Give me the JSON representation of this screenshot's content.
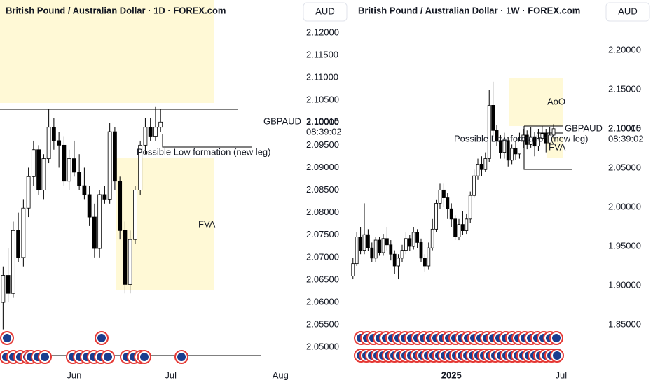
{
  "chart_data": [
    {
      "type": "candlestick",
      "title": "British Pound / Australian Dollar · 1D · FOREX.com",
      "y_axis_label": "AUD",
      "symbol": "GBPAUD",
      "last_price": 2.10015,
      "countdown": "08:39:02",
      "annotations": [
        "Possible Low formation (new leg)",
        "FVA"
      ],
      "up_color": "#ffffff",
      "down_color": "#000000",
      "open": [
        2.06,
        2.066,
        2.062,
        2.076,
        2.07,
        2.081,
        2.088,
        2.094,
        2.085,
        2.092,
        2.099,
        2.096,
        2.095,
        2.087,
        2.092,
        2.089,
        2.086,
        2.084,
        2.079,
        2.072,
        2.084,
        2.083,
        2.098,
        2.087,
        2.076,
        2.064,
        2.074,
        2.085,
        2.095,
        2.099,
        2.097,
        2.099
      ],
      "high": [
        2.068,
        2.072,
        2.078,
        2.08,
        2.083,
        2.09,
        2.096,
        2.095,
        2.093,
        2.103,
        2.101,
        2.098,
        2.097,
        2.094,
        2.096,
        2.093,
        2.09,
        2.086,
        2.082,
        2.085,
        2.086,
        2.1,
        2.099,
        2.088,
        2.078,
        2.076,
        2.086,
        2.096,
        2.101,
        2.101,
        2.1035,
        2.103
      ],
      "low": [
        2.054,
        2.06,
        2.061,
        2.069,
        2.068,
        2.079,
        2.086,
        2.084,
        2.083,
        2.091,
        2.094,
        2.09,
        2.086,
        2.085,
        2.088,
        2.085,
        2.083,
        2.077,
        2.07,
        2.07,
        2.082,
        2.082,
        2.085,
        2.074,
        2.062,
        2.062,
        2.073,
        2.084,
        2.093,
        2.096,
        2.096,
        2.098
      ],
      "close": [
        2.066,
        2.062,
        2.076,
        2.07,
        2.081,
        2.088,
        2.094,
        2.085,
        2.092,
        2.099,
        2.096,
        2.095,
        2.087,
        2.092,
        2.089,
        2.086,
        2.084,
        2.079,
        2.072,
        2.084,
        2.083,
        2.098,
        2.087,
        2.076,
        2.064,
        2.074,
        2.085,
        2.095,
        2.099,
        2.097,
        2.099,
        2.10015
      ],
      "xlim": [
        -0.6,
        58
      ],
      "xticks": [
        {
          "value": 14,
          "label": "Jun"
        },
        {
          "value": 33,
          "label": "Jul"
        },
        {
          "value": 54.6,
          "label": "Aug"
        }
      ],
      "ylim": [
        2.0463,
        2.1273
      ],
      "yticks": [
        {
          "value": 2.12,
          "label": "2.12000"
        },
        {
          "value": 2.115,
          "label": "2.11500"
        },
        {
          "value": 2.11,
          "label": "2.11000"
        },
        {
          "value": 2.105,
          "label": "2.10500"
        },
        {
          "value": 2.1,
          "label": "2.10000"
        },
        {
          "value": 2.095,
          "label": "2.09500"
        },
        {
          "value": 2.09,
          "label": "2.09000"
        },
        {
          "value": 2.085,
          "label": "2.08500"
        },
        {
          "value": 2.08,
          "label": "2.08000"
        },
        {
          "value": 2.075,
          "label": "2.07500"
        },
        {
          "value": 2.07,
          "label": "2.07000"
        },
        {
          "value": 2.065,
          "label": "2.06500"
        },
        {
          "value": 2.06,
          "label": "2.06000"
        },
        {
          "value": 2.055,
          "label": "2.05500"
        },
        {
          "value": 2.05,
          "label": "2.05000"
        }
      ]
    },
    {
      "type": "candlestick",
      "title": "British Pound / Australian Dollar · 1W · FOREX.com",
      "y_axis_label": "AUD",
      "symbol": "GBPAUD",
      "last_price": 2.10015,
      "countdown": "08:39:02",
      "annotations": [
        "AoO",
        "Possible Low formation (new leg)",
        "FVA"
      ],
      "up_color": "#ffffff",
      "down_color": "#000000",
      "open": [
        1.912,
        1.928,
        1.962,
        1.945,
        1.965,
        1.948,
        1.935,
        1.958,
        1.942,
        1.96,
        1.952,
        1.94,
        1.925,
        1.935,
        1.945,
        1.96,
        1.95,
        1.968,
        1.955,
        1.935,
        1.925,
        1.948,
        1.972,
        2.005,
        2.022,
        2.012,
        1.998,
        1.985,
        1.962,
        1.978,
        1.97,
        1.985,
        2.015,
        2.04,
        2.055,
        2.048,
        2.062,
        2.13,
        2.098,
        2.085,
        2.07,
        2.085,
        2.06,
        2.075,
        2.068,
        2.085,
        2.092,
        2.08,
        2.09,
        2.078,
        2.088,
        2.094,
        2.082,
        2.092
      ],
      "high": [
        1.935,
        1.968,
        1.975,
        2.005,
        1.972,
        1.955,
        1.962,
        1.962,
        1.966,
        1.975,
        1.958,
        1.945,
        1.94,
        1.952,
        1.968,
        1.965,
        1.975,
        1.972,
        1.96,
        1.94,
        1.955,
        1.985,
        2.01,
        2.03,
        2.03,
        2.018,
        2.005,
        1.99,
        1.985,
        1.995,
        1.992,
        2.02,
        2.048,
        2.062,
        2.065,
        2.07,
        2.15,
        2.16,
        2.105,
        2.092,
        2.095,
        2.09,
        2.08,
        2.085,
        2.095,
        2.1,
        2.098,
        2.102,
        2.096,
        2.1,
        2.104,
        2.1,
        2.102,
        2.106
      ],
      "low": [
        1.908,
        1.925,
        1.94,
        1.94,
        1.944,
        1.93,
        1.93,
        1.938,
        1.938,
        1.945,
        1.932,
        1.915,
        1.908,
        1.93,
        1.94,
        1.944,
        1.946,
        1.948,
        1.93,
        1.918,
        1.92,
        1.945,
        1.968,
        1.998,
        2.0,
        1.985,
        1.975,
        1.958,
        1.958,
        1.965,
        1.966,
        1.98,
        2.012,
        2.035,
        2.04,
        2.045,
        2.058,
        2.09,
        2.078,
        2.062,
        2.062,
        2.052,
        2.055,
        2.06,
        2.062,
        2.075,
        2.074,
        2.076,
        2.065,
        2.072,
        2.085,
        2.07,
        2.078,
        2.088
      ],
      "close": [
        1.928,
        1.962,
        1.945,
        1.965,
        1.948,
        1.935,
        1.958,
        1.942,
        1.96,
        1.952,
        1.94,
        1.925,
        1.935,
        1.945,
        1.96,
        1.95,
        1.968,
        1.955,
        1.935,
        1.925,
        1.948,
        1.972,
        2.005,
        2.022,
        2.012,
        1.998,
        1.985,
        1.962,
        1.978,
        1.97,
        1.985,
        2.015,
        2.04,
        2.055,
        2.048,
        2.062,
        2.13,
        2.098,
        2.085,
        2.07,
        2.085,
        2.06,
        2.075,
        2.068,
        2.085,
        2.092,
        2.08,
        2.09,
        2.078,
        2.088,
        2.094,
        2.082,
        2.092,
        2.10015
      ],
      "xlim": [
        -0.7,
        64.1
      ],
      "xticks": [
        {
          "value": 26,
          "label": "2025"
        },
        {
          "value": 55,
          "label": "Jul"
        }
      ],
      "ylim": [
        1.8,
        2.2643
      ],
      "yticks": [
        {
          "value": 2.2,
          "label": "2.20000"
        },
        {
          "value": 2.15,
          "label": "2.15000"
        },
        {
          "value": 2.1,
          "label": "2.10000"
        },
        {
          "value": 2.05,
          "label": "2.05000"
        },
        {
          "value": 2.0,
          "label": "2.00000"
        },
        {
          "value": 1.95,
          "label": "1.95000"
        },
        {
          "value": 1.9,
          "label": "1.90000"
        },
        {
          "value": 1.85,
          "label": "1.85000"
        }
      ]
    }
  ]
}
